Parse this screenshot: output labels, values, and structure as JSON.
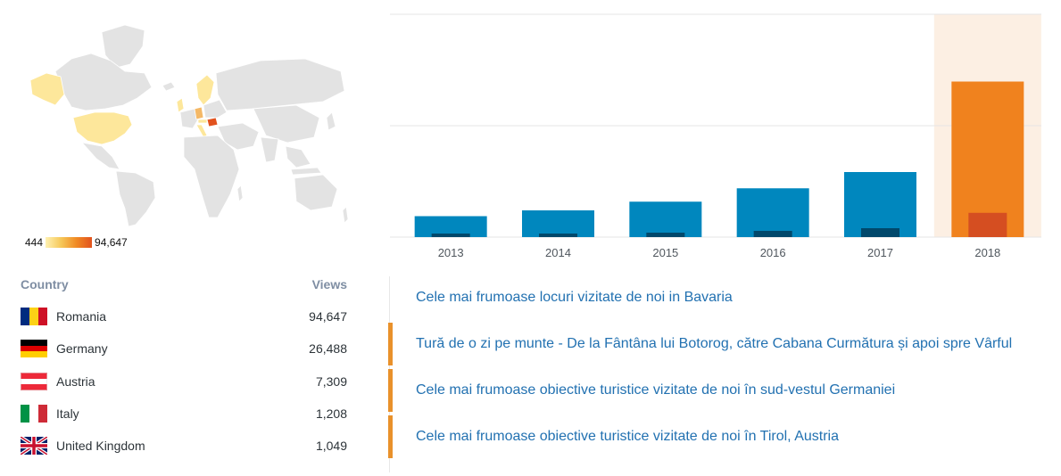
{
  "map": {
    "legend_min": "444",
    "legend_max": "94,647",
    "colors": {
      "land": "#e3e3e3",
      "border": "#ffffff",
      "low": "#fde79b",
      "mid": "#f4b866",
      "high": "#e2521e"
    }
  },
  "countries_table": {
    "col_country": "Country",
    "col_views": "Views",
    "rows": [
      {
        "name": "Romania",
        "views": "94,647",
        "flag": "romania-flag-icon"
      },
      {
        "name": "Germany",
        "views": "26,488",
        "flag": "germany-flag-icon"
      },
      {
        "name": "Austria",
        "views": "7,309",
        "flag": "austria-flag-icon"
      },
      {
        "name": "Italy",
        "views": "1,208",
        "flag": "italy-flag-icon"
      },
      {
        "name": "United Kingdom",
        "views": "1,049",
        "flag": "uk-flag-icon"
      }
    ]
  },
  "chart_data": {
    "type": "bar",
    "categories": [
      "2013",
      "2014",
      "2015",
      "2016",
      "2017",
      "2018"
    ],
    "series": [
      {
        "values": [
          9.4,
          12.0,
          15.9,
          21.9,
          29.2,
          69.8
        ],
        "color": "#0087be"
      },
      {
        "values": [
          1.6,
          1.6,
          2.0,
          2.8,
          4.0,
          10.9
        ],
        "color": "#00486b"
      }
    ],
    "highlight_category": "2018",
    "highlight_colors": {
      "bar": "#f0821e",
      "inner": "#d54e21",
      "band": "#fcefe3"
    },
    "ylim": [
      0,
      100
    ],
    "grid": true
  },
  "posts": [
    {
      "title": "Cele mai frumoase locuri vizitate de noi in Bavaria",
      "marked": false
    },
    {
      "title": "Tură de o zi pe munte - De la Fântâna lui Botorog, către Cabana Curmătura și apoi spre Vârful",
      "marked": true
    },
    {
      "title": "Cele mai frumoase obiective turistice vizitate de noi în sud-vestul Germaniei",
      "marked": true
    },
    {
      "title": "Cele mai frumoase obiective turistice vizitate de noi în Tirol, Austria",
      "marked": true
    }
  ]
}
